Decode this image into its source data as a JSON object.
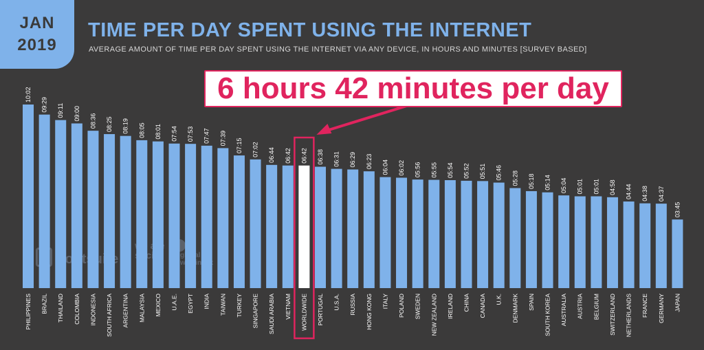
{
  "badge": {
    "month": "JAN",
    "year": "2019"
  },
  "header": {
    "title": "TIME PER DAY SPENT USING THE INTERNET",
    "subtitle": "AVERAGE AMOUNT OF TIME PER DAY SPENT USING THE INTERNET VIA ANY DEVICE, IN HOURS AND MINUTES [SURVEY BASED]"
  },
  "callout": {
    "text": "6 hours 42 minutes per day",
    "target": "WORLDWIDE"
  },
  "watermarks": {
    "hootsuite": "Hootsuite",
    "wearesocial": "we are social",
    "gwi": "global web index"
  },
  "colors": {
    "bar": "#7fb2ea",
    "highlight_bar": "#ffffff",
    "highlight_border": "#e0245e",
    "background": "#3b3a3a",
    "text": "#ffffff"
  },
  "chart_data": {
    "type": "bar",
    "unit": "hours:minutes",
    "highlight": "WORLDWIDE",
    "categories": [
      "PHILIPPINES",
      "BRAZIL",
      "THAILAND",
      "COLOMBIA",
      "INDONESIA",
      "SOUTH AFRICA",
      "ARGENTINA",
      "MALAYSIA",
      "MEXICO",
      "U.A.E.",
      "EGYPT",
      "INDIA",
      "TAIWAN",
      "TURKEY",
      "SINGAPORE",
      "SAUDI ARABIA",
      "VIETNAM",
      "WORLDWIDE",
      "PORTUGAL",
      "U.S.A.",
      "RUSSIA",
      "HONG KONG",
      "ITALY",
      "POLAND",
      "SWEDEN",
      "NEW ZEALAND",
      "IRELAND",
      "CHINA",
      "CANADA",
      "U.K.",
      "DENMARK",
      "SPAIN",
      "SOUTH KOREA",
      "AUSTRALIA",
      "AUSTRIA",
      "BELGIUM",
      "SWITZERLAND",
      "NETHERLANDS",
      "FRANCE",
      "GERMANY",
      "JAPAN"
    ],
    "labels": [
      "10:02",
      "09:29",
      "09:11",
      "09:00",
      "08:36",
      "08:25",
      "08:19",
      "08:05",
      "08:01",
      "07:54",
      "07:53",
      "07:47",
      "07:39",
      "07:15",
      "07:02",
      "06:44",
      "06:42",
      "06:42",
      "06:38",
      "06:31",
      "06:29",
      "06:23",
      "06:04",
      "06:02",
      "05:56",
      "05:55",
      "05:54",
      "05:52",
      "05:51",
      "05:46",
      "05:28",
      "05:18",
      "05:14",
      "05:04",
      "05:01",
      "05:01",
      "04:58",
      "04:44",
      "04:38",
      "04:37",
      "03:45"
    ],
    "values": [
      602,
      569,
      551,
      540,
      516,
      505,
      499,
      485,
      481,
      474,
      473,
      467,
      459,
      435,
      422,
      404,
      402,
      402,
      398,
      391,
      389,
      383,
      364,
      362,
      356,
      355,
      354,
      352,
      351,
      346,
      328,
      318,
      314,
      304,
      301,
      301,
      298,
      284,
      278,
      277,
      225
    ]
  }
}
